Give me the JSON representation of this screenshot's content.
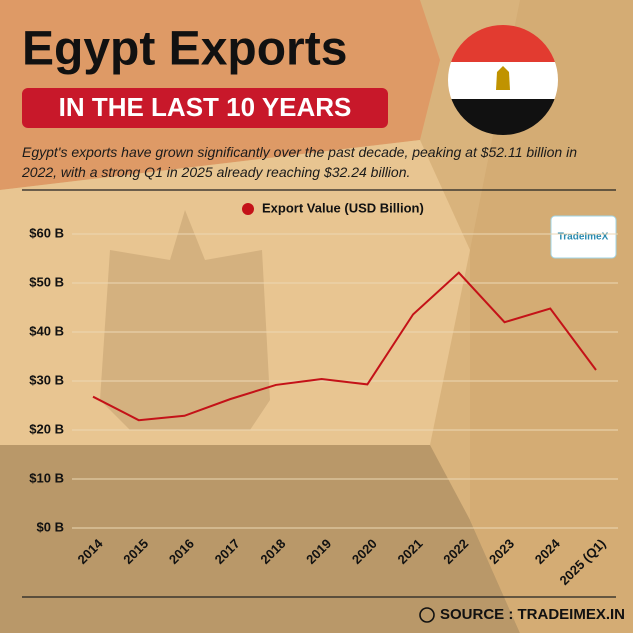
{
  "title": "Egypt Exports",
  "subtitle": "IN THE LAST 10 YEARS",
  "description": "Egypt's exports have grown significantly over the past decade, peaking at $52.11 billion in 2022, with a strong Q1 in 2025 already reaching $32.24 billion.",
  "logo": "TradeImeX",
  "source": "SOURCE : TRADEIMEX.IN",
  "chart_data": {
    "type": "line",
    "categories": [
      "2014",
      "2015",
      "2016",
      "2017",
      "2018",
      "2019",
      "2020",
      "2021",
      "2022",
      "2023",
      "2024",
      "2025 (Q1)"
    ],
    "series": [
      {
        "name": "Export Value (USD Billion)",
        "color": "#c41218",
        "values": [
          26.8,
          22.0,
          22.9,
          26.3,
          29.2,
          30.4,
          29.3,
          43.6,
          52.11,
          42.0,
          44.8,
          32.24
        ]
      }
    ],
    "ylim": [
      0,
      60
    ],
    "yticks": [
      {
        "value": 0,
        "label": "$0 B"
      },
      {
        "value": 10,
        "label": "$10 B"
      },
      {
        "value": 20,
        "label": "$20 B"
      },
      {
        "value": 30,
        "label": "$30 B"
      },
      {
        "value": 40,
        "label": "$40 B"
      },
      {
        "value": 50,
        "label": "$50 B"
      },
      {
        "value": 60,
        "label": "$60 B"
      }
    ],
    "grid": true,
    "legend": "top"
  }
}
